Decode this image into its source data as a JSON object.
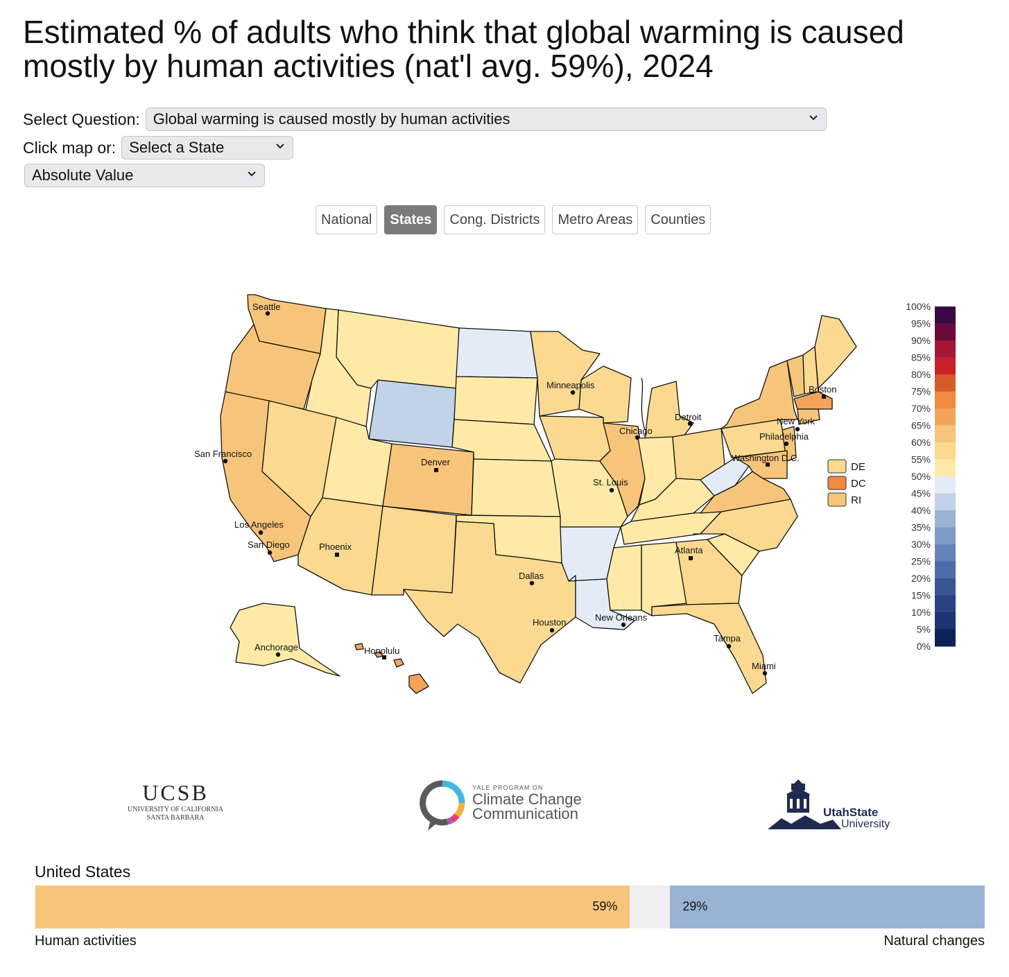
{
  "title": "Estimated % of adults who think that global warming is caused mostly by human activities (nat'l avg. 59%), 2024",
  "controls": {
    "question_label": "Select Question:",
    "question_value": "Global warming is caused mostly by human activities",
    "state_label": "Click map or:",
    "state_value": "Select a State",
    "mode_value": "Absolute Value"
  },
  "tabs": [
    {
      "label": "National",
      "active": false
    },
    {
      "label": "States",
      "active": true
    },
    {
      "label": "Cong. Districts",
      "active": false
    },
    {
      "label": "Metro Areas",
      "active": false
    },
    {
      "label": "Counties",
      "active": false
    }
  ],
  "map": {
    "cities": [
      "Seattle",
      "San Francisco",
      "Los Angeles",
      "San Diego",
      "Phoenix",
      "Denver",
      "Minneapolis",
      "Chicago",
      "Detroit",
      "St. Louis",
      "Dallas",
      "Houston",
      "New Orleans",
      "Atlanta",
      "Tampa",
      "Miami",
      "Boston",
      "New York",
      "Philadelphia",
      "Washington D.C.",
      "Anchorage",
      "Honolulu"
    ],
    "small_states": [
      {
        "label": "DE",
        "color": "#fbd991"
      },
      {
        "label": "DC",
        "color": "#f08a40"
      },
      {
        "label": "RI",
        "color": "#f7c57a"
      }
    ],
    "legend_ticks": [
      "100%",
      "95%",
      "90%",
      "85%",
      "80%",
      "75%",
      "70%",
      "65%",
      "60%",
      "55%",
      "50%",
      "45%",
      "40%",
      "35%",
      "30%",
      "25%",
      "20%",
      "15%",
      "10%",
      "5%",
      "0%"
    ],
    "legend_colors": [
      "#3b0a45",
      "#6a0a3b",
      "#a21735",
      "#cc1f2c",
      "#d65b2a",
      "#f08a40",
      "#f4a45a",
      "#f7c57a",
      "#fbd991",
      "#feeaa6",
      "#e3ecf6",
      "#c2d2e8",
      "#9ab3d4",
      "#7f9bc7",
      "#6583b7",
      "#4e6aa8",
      "#3a5495",
      "#2b4383",
      "#1d3472",
      "#0e2155"
    ]
  },
  "logos": {
    "ucsb_main": "UCSB",
    "ucsb_sub1": "UNIVERSITY OF CALIFORNIA",
    "ucsb_sub2": "SANTA BARBARA",
    "yale_kicker": "YALE PROGRAM ON",
    "yale_line1": "Climate Change",
    "yale_line2": "Communication",
    "usu_line1": "UtahState",
    "usu_line2": "University"
  },
  "summary": {
    "region": "United States",
    "left_value": 59,
    "left_label": "59%",
    "left_caption": "Human activities",
    "right_value": 29,
    "right_label": "29%",
    "right_caption": "Natural changes"
  }
}
